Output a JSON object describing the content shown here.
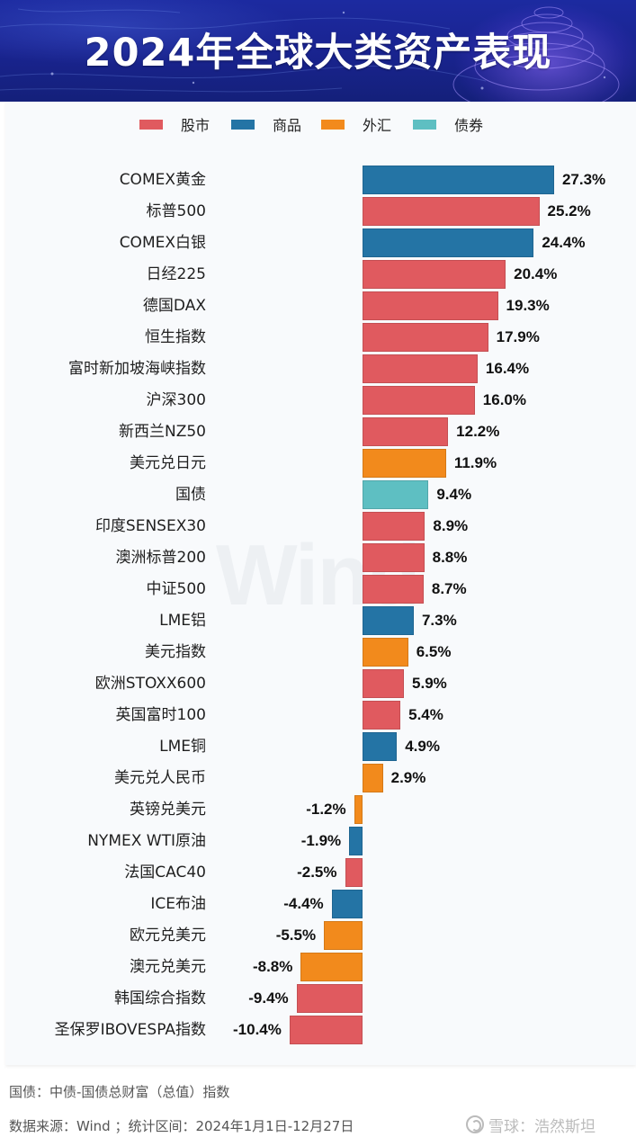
{
  "header": {
    "title": "2024年全球大类资产表现"
  },
  "legend": [
    {
      "label": "股市",
      "color": "#e05a5f"
    },
    {
      "label": "商品",
      "color": "#2474a5"
    },
    {
      "label": "外汇",
      "color": "#f28a1c"
    },
    {
      "label": "债券",
      "color": "#5ebfc2"
    }
  ],
  "watermark": "Wind",
  "colors": {
    "股市": "#e05a5f",
    "商品": "#2474a5",
    "外汇": "#f28a1c",
    "债券": "#5ebfc2"
  },
  "chart_data": {
    "type": "bar",
    "orientation": "horizontal",
    "title": "2024年全球大类资产表现",
    "xlabel": "",
    "ylabel": "",
    "unit": "%",
    "grid": false,
    "legend_position": "top",
    "legend": [
      "股市",
      "商品",
      "外汇",
      "债券"
    ],
    "categories": [
      "COMEX黄金",
      "标普500",
      "COMEX白银",
      "日经225",
      "德国DAX",
      "恒生指数",
      "富时新加坡海峡指数",
      "沪深300",
      "新西兰NZ50",
      "美元兑日元",
      "国债",
      "印度SENSEX30",
      "澳洲标普200",
      "中证500",
      "LME铝",
      "美元指数",
      "欧洲STOXX600",
      "英国富时100",
      "LME铜",
      "美元兑人民币",
      "英镑兑美元",
      "NYMEX WTI原油",
      "法国CAC40",
      "ICE布油",
      "欧元兑美元",
      "澳元兑美元",
      "韩国综合指数",
      "圣保罗IBOVESPA指数"
    ],
    "values": [
      27.3,
      25.2,
      24.4,
      20.4,
      19.3,
      17.9,
      16.4,
      16.0,
      12.2,
      11.9,
      9.4,
      8.9,
      8.8,
      8.7,
      7.3,
      6.5,
      5.9,
      5.4,
      4.9,
      2.9,
      -1.2,
      -1.9,
      -2.5,
      -4.4,
      -5.5,
      -8.8,
      -9.4,
      -10.4
    ],
    "asset_class": [
      "商品",
      "股市",
      "商品",
      "股市",
      "股市",
      "股市",
      "股市",
      "股市",
      "股市",
      "外汇",
      "债券",
      "股市",
      "股市",
      "股市",
      "商品",
      "外汇",
      "股市",
      "股市",
      "商品",
      "外汇",
      "外汇",
      "商品",
      "股市",
      "商品",
      "外汇",
      "外汇",
      "股市",
      "股市"
    ],
    "value_labels": [
      "27.3%",
      "25.2%",
      "24.4%",
      "20.4%",
      "19.3%",
      "17.9%",
      "16.4%",
      "16.0%",
      "12.2%",
      "11.9%",
      "9.4%",
      "8.9%",
      "8.8%",
      "8.7%",
      "7.3%",
      "6.5%",
      "5.9%",
      "5.4%",
      "4.9%",
      "2.9%",
      "-1.2%",
      "-1.9%",
      "-2.5%",
      "-4.4%",
      "-5.5%",
      "-8.8%",
      "-9.4%",
      "-10.4%"
    ]
  },
  "footer": {
    "note": "国债：中债-国债总财富（总值）指数",
    "source": "数据来源：Wind ；统计区间：2024年1月1日-12月27日",
    "brand": "雪球：浩然斯坦"
  }
}
